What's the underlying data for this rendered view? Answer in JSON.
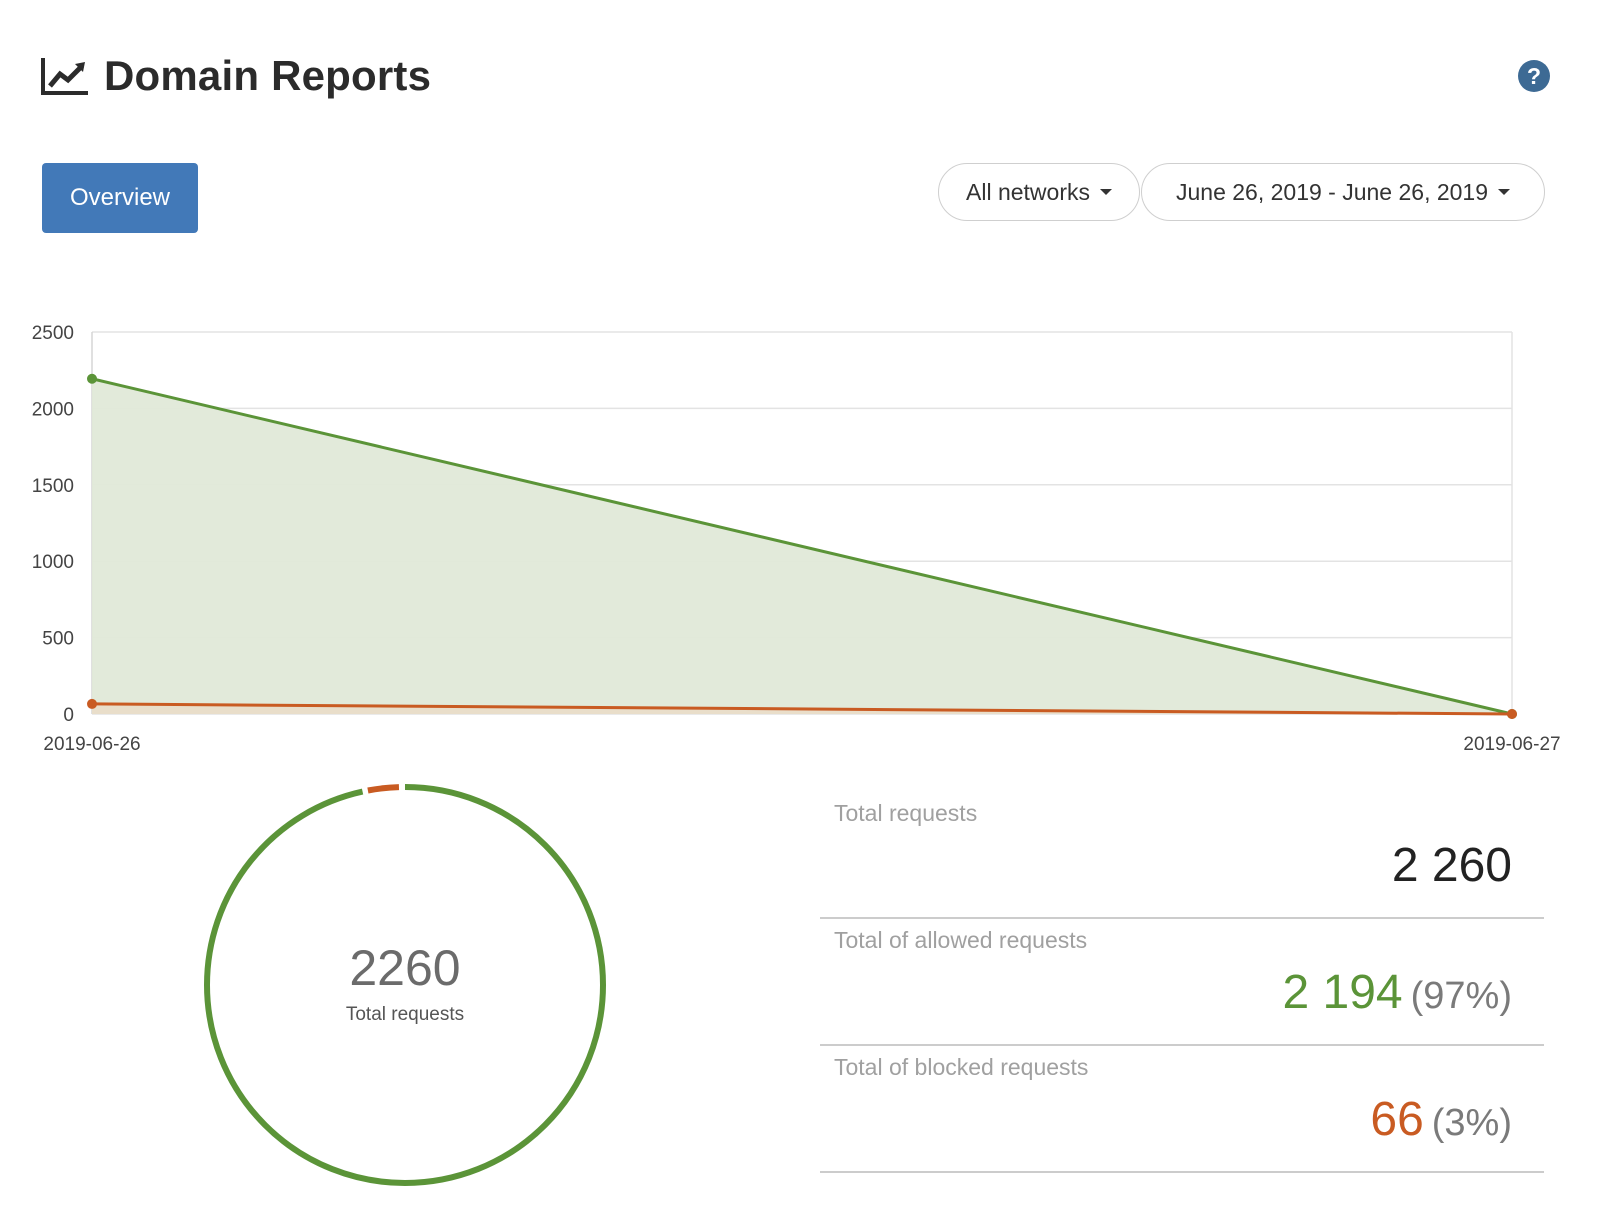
{
  "header": {
    "title": "Domain Reports",
    "title_icon": "line-chart-icon",
    "help_icon": "help-icon"
  },
  "tabs": [
    {
      "label": "Overview",
      "active": true
    }
  ],
  "filters": {
    "network": "All networks",
    "date_range": "June 26, 2019 - June 26, 2019"
  },
  "colors": {
    "allowed": "#5b9438",
    "allowed_fill": "#e0e9d8",
    "blocked": "#c95b22",
    "accent": "#4279b8",
    "help": "#3d6a94"
  },
  "chart_data": {
    "type": "area",
    "x": [
      "2019-06-26",
      "2019-06-27"
    ],
    "series": [
      {
        "values": [
          2194,
          0
        ]
      },
      {
        "values": [
          66,
          0
        ]
      }
    ],
    "ylim": [
      0,
      2500
    ],
    "yticks": [
      0,
      500,
      1000,
      1500,
      2000,
      2500
    ],
    "grid": true
  },
  "donut": {
    "value": "2260",
    "label": "Total requests",
    "allowed_fraction": 0.97,
    "blocked_fraction": 0.03
  },
  "stats": {
    "total": {
      "label": "Total requests",
      "value": "2 260"
    },
    "allowed": {
      "label": "Total of allowed requests",
      "value": "2 194",
      "pct": "(97%)"
    },
    "blocked": {
      "label": "Total of blocked requests",
      "value": "66",
      "pct": "(3%)"
    }
  }
}
